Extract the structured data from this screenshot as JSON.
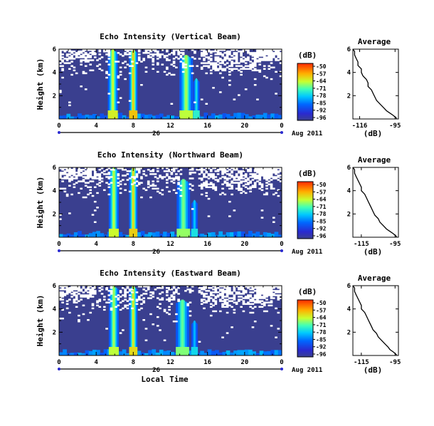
{
  "chart_data": [
    {
      "type": "heatmap",
      "title": "Echo Intensity (Vertical Beam)",
      "ylabel": "Height (km)",
      "ylim": [
        0,
        6
      ],
      "yticks": [
        "6",
        "4",
        "2"
      ],
      "xlim": [
        0,
        24
      ],
      "xticks": [
        "0",
        "4",
        "8",
        "12",
        "16",
        "20",
        "0"
      ],
      "date_day": "26",
      "date_month": "Aug 2011",
      "colorbar": {
        "unit": "(dB)",
        "range": [
          -96,
          -50
        ],
        "ticks": [
          "-50",
          "-57",
          "-64",
          "-71",
          "-78",
          "-85",
          "-92",
          "-96"
        ]
      },
      "profile": {
        "title": "Average",
        "xlabel": "(dB)",
        "xlim": [
          -120,
          -93
        ],
        "xticks": [
          "-116",
          "-95"
        ],
        "ylim": [
          0,
          6
        ],
        "yticks": [
          "6",
          "4",
          "2"
        ],
        "height_km": [
          0.05,
          0.3,
          0.5,
          0.7,
          1.0,
          1.3,
          1.6,
          1.9,
          2.2,
          2.5,
          2.8,
          3.1,
          3.4,
          3.7,
          4.0,
          4.3,
          4.6,
          4.9,
          5.2,
          5.5,
          5.8,
          6.0
        ],
        "avg_db": [
          -94,
          -96,
          -98,
          -100,
          -102,
          -104,
          -106,
          -107,
          -108,
          -109,
          -111,
          -111,
          -112,
          -114,
          -115,
          -115,
          -117,
          -117,
          -118,
          -119,
          -119,
          -120
        ]
      },
      "echo_bands": [
        {
          "time_h": 5.8,
          "width_h": 0.6,
          "top_km": 6.0,
          "peak_db": -70
        },
        {
          "time_h": 8.0,
          "width_h": 0.5,
          "top_km": 6.0,
          "peak_db": -66
        },
        {
          "time_h": 13.7,
          "width_h": 0.8,
          "top_km": 5.5,
          "peak_db": -72
        },
        {
          "time_h": 14.8,
          "width_h": 0.4,
          "top_km": 3.5,
          "peak_db": -80
        }
      ]
    },
    {
      "type": "heatmap",
      "title": "Echo Intensity (Northward Beam)",
      "ylabel": "Height (km)",
      "ylim": [
        0,
        6
      ],
      "yticks": [
        "6",
        "4",
        "2"
      ],
      "xlim": [
        0,
        24
      ],
      "xticks": [
        "0",
        "4",
        "8",
        "12",
        "16",
        "20",
        "0"
      ],
      "date_day": "26",
      "date_month": "Aug 2011",
      "colorbar": {
        "unit": "(dB)",
        "range": [
          -96,
          -50
        ],
        "ticks": [
          "-50",
          "-57",
          "-64",
          "-71",
          "-78",
          "-85",
          "-92",
          "-96"
        ]
      },
      "profile": {
        "title": "Average",
        "xlabel": "(dB)",
        "xlim": [
          -120,
          -93
        ],
        "xticks": [
          "-115",
          "-95"
        ],
        "ylim": [
          0,
          6
        ],
        "yticks": [
          "6",
          "4",
          "2"
        ],
        "height_km": [
          0.05,
          0.3,
          0.5,
          0.7,
          1.0,
          1.3,
          1.6,
          1.9,
          2.2,
          2.5,
          2.8,
          3.1,
          3.4,
          3.7,
          4.0,
          4.3,
          4.6,
          4.9,
          5.2,
          5.5,
          5.8,
          6.0
        ],
        "avg_db": [
          -94,
          -96,
          -98,
          -100,
          -102,
          -104,
          -105,
          -107,
          -108,
          -109,
          -110,
          -111,
          -112,
          -113,
          -115,
          -115,
          -116,
          -117,
          -118,
          -119,
          -119,
          -120
        ]
      },
      "echo_bands": [
        {
          "time_h": 5.9,
          "width_h": 0.6,
          "top_km": 6.0,
          "peak_db": -71
        },
        {
          "time_h": 8.0,
          "width_h": 0.5,
          "top_km": 6.0,
          "peak_db": -67
        },
        {
          "time_h": 13.4,
          "width_h": 0.8,
          "top_km": 5.0,
          "peak_db": -74
        },
        {
          "time_h": 14.6,
          "width_h": 0.4,
          "top_km": 3.2,
          "peak_db": -82
        }
      ]
    },
    {
      "type": "heatmap",
      "title": "Echo Intensity (Eastward Beam)",
      "ylabel": "Height (km)",
      "ylim": [
        0,
        6
      ],
      "yticks": [
        "6",
        "4",
        "2"
      ],
      "xlim": [
        0,
        24
      ],
      "xticks": [
        "0",
        "4",
        "8",
        "12",
        "16",
        "20",
        "0"
      ],
      "date_day": "26",
      "date_month": "Aug 2011",
      "xlabel": "Local Time",
      "colorbar": {
        "unit": "(dB)",
        "range": [
          -96,
          -50
        ],
        "ticks": [
          "-50",
          "-57",
          "-64",
          "-71",
          "-78",
          "-85",
          "-92",
          "-96"
        ]
      },
      "profile": {
        "title": "Average",
        "xlabel": "(dB)",
        "xlim": [
          -120,
          -93
        ],
        "xticks": [
          "-115",
          "-95"
        ],
        "ylim": [
          0,
          6
        ],
        "yticks": [
          "6",
          "4",
          "2"
        ],
        "height_km": [
          0.05,
          0.3,
          0.5,
          0.7,
          1.0,
          1.3,
          1.6,
          1.9,
          2.2,
          2.5,
          2.8,
          3.1,
          3.4,
          3.7,
          4.0,
          4.3,
          4.6,
          4.9,
          5.2,
          5.5,
          5.8,
          6.0
        ],
        "avg_db": [
          -94,
          -96,
          -98,
          -99,
          -101,
          -103,
          -105,
          -106,
          -108,
          -109,
          -110,
          -111,
          -112,
          -113,
          -115,
          -115,
          -116,
          -117,
          -118,
          -119,
          -119,
          -120
        ]
      },
      "echo_bands": [
        {
          "time_h": 5.9,
          "width_h": 0.6,
          "top_km": 6.0,
          "peak_db": -72
        },
        {
          "time_h": 8.0,
          "width_h": 0.5,
          "top_km": 6.0,
          "peak_db": -68
        },
        {
          "time_h": 13.3,
          "width_h": 0.8,
          "top_km": 4.8,
          "peak_db": -75
        },
        {
          "time_h": 14.6,
          "width_h": 0.4,
          "top_km": 3.0,
          "peak_db": -83
        }
      ]
    }
  ]
}
